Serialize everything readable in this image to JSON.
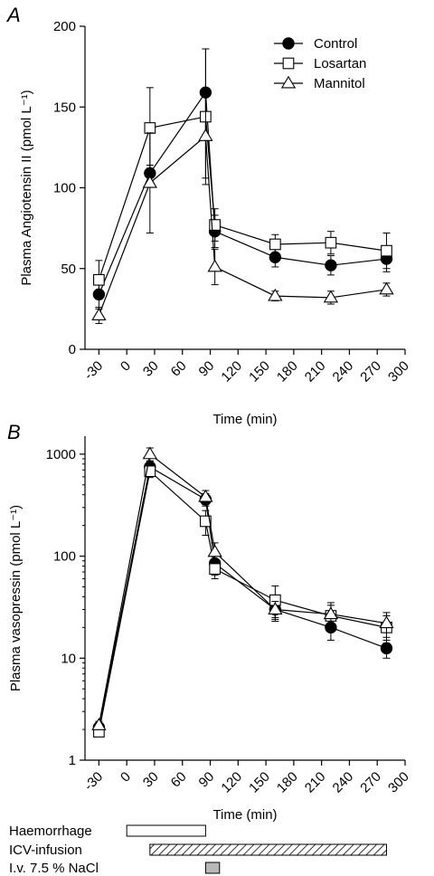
{
  "chart_data": [
    {
      "type": "line",
      "panel_label": "A",
      "xlabel": "Time (min)",
      "ylabel": "Plasma Angiotensin II  (pmol L⁻¹)",
      "xlim": [
        -45,
        300
      ],
      "ylim": [
        0,
        200
      ],
      "yscale": "linear",
      "xticks": [
        -30,
        0,
        30,
        60,
        90,
        120,
        150,
        180,
        210,
        240,
        270,
        300
      ],
      "yticks": [
        0,
        50,
        100,
        150,
        200
      ],
      "legend_position": "top-right",
      "series": [
        {
          "name": "Control",
          "marker": "filled-circle",
          "x": [
            -30,
            25,
            85,
            95,
            160,
            220,
            280
          ],
          "y": [
            34,
            109,
            159,
            73,
            57,
            52,
            56
          ],
          "err": [
            9,
            5,
            27,
            10,
            6,
            6,
            8
          ]
        },
        {
          "name": "Losartan",
          "marker": "open-square",
          "x": [
            -30,
            25,
            85,
            95,
            160,
            220,
            280
          ],
          "y": [
            43,
            137,
            144,
            77,
            65,
            66,
            61
          ],
          "err": [
            12,
            25,
            42,
            10,
            6,
            7,
            11
          ]
        },
        {
          "name": "Mannitol",
          "marker": "open-triangle",
          "x": [
            -30,
            25,
            85,
            95,
            160,
            220,
            280
          ],
          "y": [
            21,
            103,
            132,
            51,
            33,
            32,
            37
          ],
          "err": [
            5,
            31,
            26,
            11,
            3,
            4,
            4
          ]
        }
      ]
    },
    {
      "type": "line",
      "panel_label": "B",
      "xlabel": "Time (min)",
      "ylabel": "Plasma vasopressin (pmol L⁻¹)",
      "xlim": [
        -45,
        300
      ],
      "ylim": [
        1,
        1500
      ],
      "yscale": "log",
      "xticks": [
        -30,
        0,
        30,
        60,
        90,
        120,
        150,
        180,
        210,
        240,
        270,
        300
      ],
      "yticks": [
        1,
        10,
        100,
        1000
      ],
      "series": [
        {
          "name": "Control",
          "marker": "filled-circle",
          "x": [
            -30,
            25,
            85,
            95,
            160,
            220,
            280
          ],
          "y": [
            2.1,
            750,
            360,
            85,
            30,
            20,
            12.5
          ],
          "err": [
            0.2,
            110,
            50,
            20,
            5,
            5,
            2.5
          ]
        },
        {
          "name": "Losartan",
          "marker": "open-square",
          "x": [
            -30,
            25,
            85,
            95,
            160,
            220,
            280
          ],
          "y": [
            1.9,
            680,
            220,
            75,
            37,
            26,
            20
          ],
          "err": [
            0.2,
            90,
            60,
            15,
            14,
            7,
            6
          ]
        },
        {
          "name": "Mannitol",
          "marker": "open-triangle",
          "x": [
            -30,
            25,
            85,
            95,
            160,
            220,
            280
          ],
          "y": [
            2.2,
            1000,
            380,
            110,
            30,
            27,
            22
          ],
          "err": [
            0.2,
            150,
            60,
            25,
            6,
            8,
            6
          ]
        }
      ]
    }
  ],
  "protocol": {
    "bars": [
      {
        "label": "Haemorrhage",
        "start": 0,
        "end": 85,
        "fill": "open"
      },
      {
        "label": "ICV-infusion",
        "start": 25,
        "end": 280,
        "fill": "hatched"
      },
      {
        "label": "I.v. 7.5 % NaCl",
        "start": 85,
        "end": 100,
        "fill": "grey"
      }
    ],
    "colors": {
      "grey_fill": "#b8b8b8"
    }
  }
}
